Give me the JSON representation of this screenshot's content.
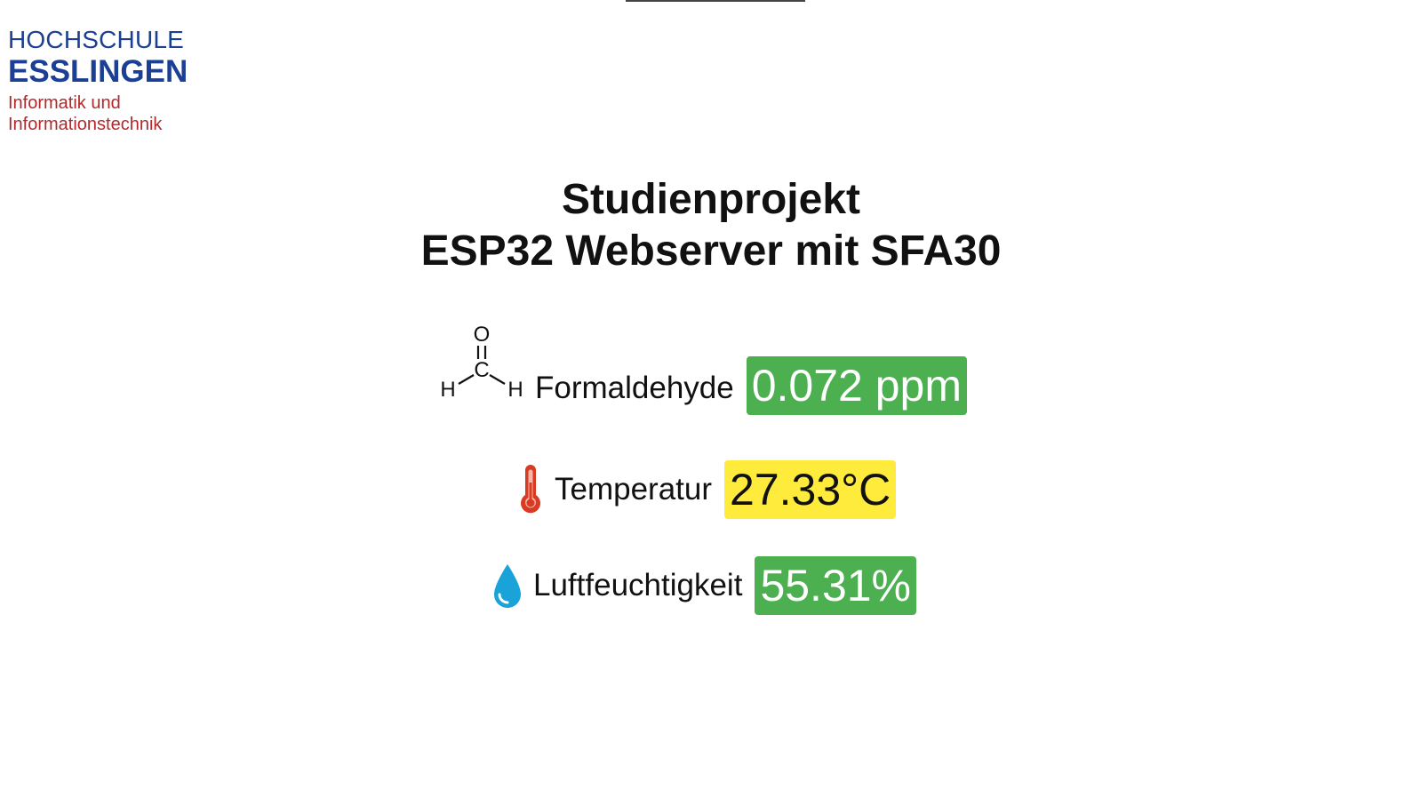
{
  "logo": {
    "line1": "HOCHSCHULE",
    "line2": "ESSLINGEN",
    "sub1": "Informatik und",
    "sub2": "Informationstechnik"
  },
  "title": {
    "line1": "Studienprojekt",
    "line2": "ESP32 Webserver mit SFA30"
  },
  "readings": {
    "formaldehyde": {
      "label": "Formaldehyde",
      "value": "0.072 ppm",
      "color": "#4caf50",
      "icon": "formaldehyde-molecule-icon",
      "molecule_atoms": [
        "O",
        "C",
        "H",
        "H"
      ]
    },
    "temperature": {
      "label": "Temperatur",
      "value": "27.33°C",
      "color": "#ffeb3b",
      "icon": "thermometer-icon"
    },
    "humidity": {
      "label": "Luftfeuchtigkeit",
      "value": "55.31%",
      "color": "#4caf50",
      "icon": "water-drop-icon"
    }
  },
  "colors": {
    "brand_blue": "#1a3f94",
    "brand_red": "#b2282b",
    "status_green": "#4caf50",
    "status_yellow": "#ffeb3b"
  }
}
